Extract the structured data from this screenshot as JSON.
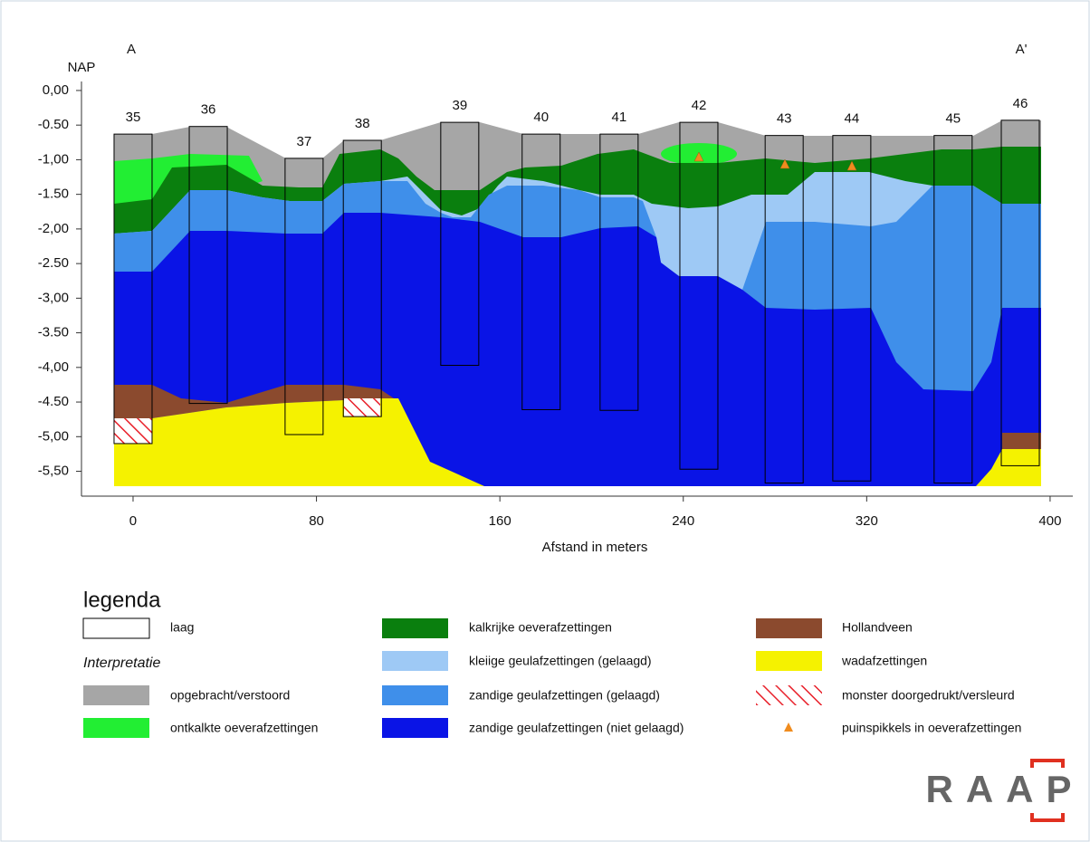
{
  "chart_data": {
    "type": "cross-section",
    "y_label": "NAP",
    "x_label": "Afstand in meters",
    "start_label": "A",
    "end_label": "A'",
    "xlim": [
      -22.5,
      409.9
    ],
    "ylim": [
      -5.82,
      0.13
    ],
    "xticks": [
      0,
      80,
      160,
      240,
      320,
      400
    ],
    "yticks": [
      {
        "value": 0,
        "label": "0,00"
      },
      {
        "value": -0.5,
        "label": "-0.50"
      },
      {
        "value": -1,
        "label": "-1,00"
      },
      {
        "value": -1.5,
        "label": "-1.50"
      },
      {
        "value": -2,
        "label": "-2,00"
      },
      {
        "value": -2.5,
        "label": "-2.50"
      },
      {
        "value": -3,
        "label": "-3,00"
      },
      {
        "value": -3.5,
        "label": "-3.50"
      },
      {
        "value": -4,
        "label": "-4,00"
      },
      {
        "value": -4.5,
        "label": "-4.50"
      },
      {
        "value": -5,
        "label": "-5,00"
      },
      {
        "value": -5.5,
        "label": "-5,50"
      }
    ],
    "boreholes": [
      {
        "label": "35",
        "x": 0,
        "top": -0.63,
        "bottom": -5.1
      },
      {
        "label": "36",
        "x": 32.8,
        "top": -0.52,
        "bottom": -4.52
      },
      {
        "label": "37",
        "x": 74.6,
        "top": -0.98,
        "bottom": -4.97
      },
      {
        "label": "38",
        "x": 100,
        "top": -0.72,
        "bottom": -4.71
      },
      {
        "label": "39",
        "x": 142.5,
        "top": -0.46,
        "bottom": -3.97
      },
      {
        "label": "40",
        "x": 178,
        "top": -0.63,
        "bottom": -4.61
      },
      {
        "label": "41",
        "x": 212,
        "top": -0.63,
        "bottom": -4.62
      },
      {
        "label": "42",
        "x": 246.8,
        "top": -0.46,
        "bottom": -5.47
      },
      {
        "label": "43",
        "x": 284,
        "top": -0.65,
        "bottom": -5.67
      },
      {
        "label": "44",
        "x": 313.5,
        "top": -0.65,
        "bottom": -5.64
      },
      {
        "label": "45",
        "x": 357.7,
        "top": -0.65,
        "bottom": -5.67
      },
      {
        "label": "46",
        "x": 387,
        "top": -0.43,
        "bottom": -5.42
      }
    ]
  },
  "legend": {
    "title": "legenda",
    "subtitle": "Interpretatie",
    "items": [
      "laag",
      "opgebracht/verstoord",
      "ontkalkte oeverafzettingen",
      "kalkrijke oeverafzettingen",
      "kleiige geulafzettingen (gelaagd)",
      "zandige geulafzettingen (gelaagd)",
      "zandige geulafzettingen (niet gelaagd)",
      "Hollandveen",
      "wadafzettingen",
      "monster doorgedrukt/versleurd",
      "puinspikkels in oeverafzettingen"
    ]
  },
  "logo": "RAAP"
}
